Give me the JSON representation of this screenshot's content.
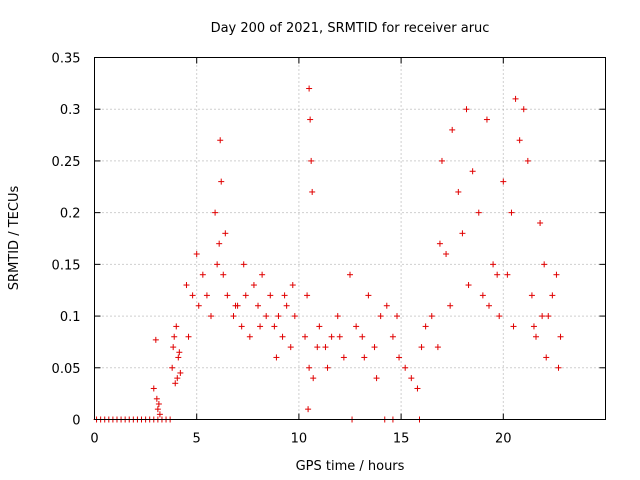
{
  "chart_data": {
    "type": "scatter",
    "title": "Day 200 of 2021, SRMTID for receiver aruc",
    "xlabel": "GPS time / hours",
    "ylabel": "SRMTID / TECUs",
    "xlim": [
      0,
      25
    ],
    "ylim": [
      0,
      0.35
    ],
    "xticks": [
      0,
      5,
      10,
      15,
      20
    ],
    "xtick_labels": [
      "0",
      "5",
      "10",
      "15",
      "20"
    ],
    "yticks": [
      0,
      0.05,
      0.1,
      0.15,
      0.2,
      0.25,
      0.3,
      0.35
    ],
    "ytick_labels": [
      "0",
      "0.05",
      "0.1",
      "0.15",
      "0.2",
      "0.25",
      "0.3",
      "0.35"
    ],
    "grid": true,
    "marker": "plus",
    "color": "#e00000",
    "series": [
      {
        "name": "SRMTID",
        "x": [
          0.1,
          0.3,
          0.5,
          0.7,
          0.9,
          1.1,
          1.3,
          1.5,
          1.7,
          1.9,
          2.1,
          2.3,
          2.5,
          2.7,
          2.9,
          3.1,
          3.3,
          3.5,
          3.7,
          2.9,
          3.0,
          3.05,
          3.1,
          3.15,
          3.2,
          3.8,
          3.9,
          4.0,
          4.1,
          4.2,
          3.85,
          3.95,
          4.05,
          4.15,
          4.5,
          4.6,
          4.8,
          5.0,
          5.1,
          5.3,
          5.5,
          5.7,
          5.9,
          6.0,
          6.1,
          6.15,
          6.2,
          6.3,
          6.4,
          6.5,
          6.8,
          7.0,
          7.2,
          7.4,
          7.6,
          7.8,
          8.0,
          8.2,
          8.4,
          8.6,
          8.8,
          9.0,
          9.2,
          9.4,
          9.6,
          9.8,
          10.3,
          10.4,
          10.5,
          10.55,
          10.6,
          10.65,
          10.5,
          10.45,
          10.7,
          11.0,
          11.3,
          11.6,
          11.9,
          12.2,
          12.5,
          12.8,
          13.1,
          13.4,
          13.7,
          14.0,
          14.3,
          14.6,
          14.9,
          15.2,
          15.5,
          15.8,
          12.6,
          14.2,
          14.6,
          15.9,
          16.2,
          16.5,
          16.8,
          17.0,
          17.2,
          17.5,
          17.8,
          18.0,
          18.2,
          18.5,
          18.8,
          19.0,
          19.2,
          19.5,
          19.8,
          20.0,
          20.2,
          20.4,
          20.6,
          20.8,
          21.0,
          21.2,
          21.4,
          21.6,
          21.8,
          22.0,
          22.2,
          22.4,
          22.6,
          22.8,
          7.3,
          8.9,
          9.7,
          11.4,
          13.8,
          16.9,
          19.3,
          21.5,
          22.1,
          6.9,
          8.1,
          9.3,
          10.9,
          12.0,
          13.2,
          14.8,
          16.0,
          17.4,
          18.3,
          19.7,
          20.5,
          21.9,
          22.7
        ],
        "y": [
          0,
          0,
          0,
          0,
          0,
          0,
          0,
          0,
          0,
          0,
          0,
          0,
          0,
          0,
          0,
          0,
          0,
          0,
          0,
          0.03,
          0.077,
          0.02,
          0.01,
          0.015,
          0.005,
          0.05,
          0.08,
          0.09,
          0.06,
          0.045,
          0.07,
          0.035,
          0.04,
          0.065,
          0.13,
          0.08,
          0.12,
          0.16,
          0.11,
          0.14,
          0.12,
          0.1,
          0.2,
          0.15,
          0.17,
          0.27,
          0.23,
          0.14,
          0.18,
          0.12,
          0.1,
          0.11,
          0.09,
          0.12,
          0.08,
          0.13,
          0.11,
          0.14,
          0.1,
          0.12,
          0.09,
          0.1,
          0.08,
          0.11,
          0.07,
          0.1,
          0.08,
          0.12,
          0.32,
          0.29,
          0.25,
          0.22,
          0.05,
          0.01,
          0.04,
          0.09,
          0.07,
          0.08,
          0.1,
          0.06,
          0.14,
          0.09,
          0.08,
          0.12,
          0.07,
          0.1,
          0.11,
          0.08,
          0.06,
          0.05,
          0.04,
          0.03,
          0,
          0,
          0,
          0,
          0.09,
          0.1,
          0.07,
          0.25,
          0.16,
          0.28,
          0.22,
          0.18,
          0.3,
          0.24,
          0.2,
          0.12,
          0.29,
          0.15,
          0.1,
          0.23,
          0.14,
          0.2,
          0.31,
          0.27,
          0.3,
          0.25,
          0.12,
          0.08,
          0.19,
          0.15,
          0.1,
          0.12,
          0.14,
          0.08,
          0.15,
          0.06,
          0.13,
          0.05,
          0.04,
          0.17,
          0.11,
          0.09,
          0.06,
          0.11,
          0.09,
          0.12,
          0.07,
          0.08,
          0.06,
          0.1,
          0.07,
          0.11,
          0.13,
          0.14,
          0.09,
          0.1,
          0.05
        ]
      }
    ]
  }
}
